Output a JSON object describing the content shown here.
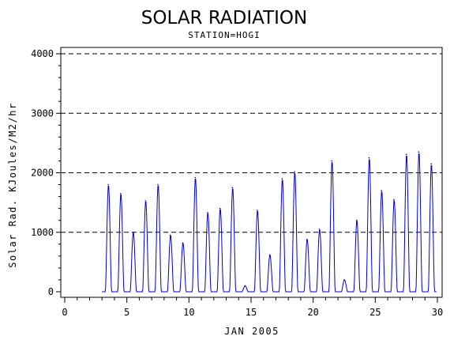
{
  "chart_data": {
    "type": "line",
    "title": "SOLAR RADIATION",
    "subtitle": "STATION=HOGI",
    "xlabel": "JAN 2005",
    "ylabel": "Solar Rad. KJoules/M2/hr",
    "xlim": [
      0,
      30
    ],
    "ylim": [
      0,
      4000
    ],
    "x_ticks": [
      "0",
      "5",
      "10",
      "15",
      "20",
      "25",
      "30"
    ],
    "y_ticks": [
      "0",
      "1000",
      "2000",
      "3000",
      "4000"
    ],
    "grid": "horizontal dashed",
    "line_color": "#0000cc",
    "daily_peaks": [
      {
        "day": 3,
        "peak": 1800
      },
      {
        "day": 4,
        "peak": 1650
      },
      {
        "day": 5,
        "peak": 1000
      },
      {
        "day": 6,
        "peak": 1530
      },
      {
        "day": 7,
        "peak": 1800
      },
      {
        "day": 8,
        "peak": 950
      },
      {
        "day": 9,
        "peak": 820
      },
      {
        "day": 10,
        "peak": 1920
      },
      {
        "day": 11,
        "peak": 1330
      },
      {
        "day": 12,
        "peak": 1400
      },
      {
        "day": 13,
        "peak": 1750
      },
      {
        "day": 14,
        "peak": 100
      },
      {
        "day": 15,
        "peak": 1370
      },
      {
        "day": 16,
        "peak": 620
      },
      {
        "day": 17,
        "peak": 1900
      },
      {
        "day": 18,
        "peak": 2020
      },
      {
        "day": 19,
        "peak": 880
      },
      {
        "day": 20,
        "peak": 1050
      },
      {
        "day": 21,
        "peak": 2200
      },
      {
        "day": 22,
        "peak": 200
      },
      {
        "day": 23,
        "peak": 1200
      },
      {
        "day": 24,
        "peak": 2250
      },
      {
        "day": 25,
        "peak": 1700
      },
      {
        "day": 26,
        "peak": 1550
      },
      {
        "day": 27,
        "peak": 2310
      },
      {
        "day": 28,
        "peak": 2350
      },
      {
        "day": 29,
        "peak": 2150
      }
    ]
  }
}
